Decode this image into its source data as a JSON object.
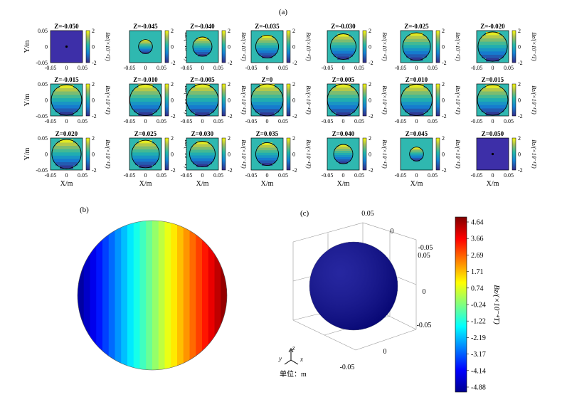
{
  "figure": {
    "panel_a_label": "(a)",
    "panel_b_label": "(b)",
    "panel_c_label": "(c)"
  },
  "panel_a": {
    "slice_titles": [
      "Z=-0.050",
      "Z=-0.045",
      "Z=-0.040",
      "Z=-0.035",
      "Z=-0.030",
      "Z=-0.025",
      "Z=-0.020",
      "Z=-0.015",
      "Z=-0.010",
      "Z=-0.005",
      "Z=0",
      "Z=0.005",
      "Z=0.010",
      "Z=0.015",
      "Z=0.020",
      "Z=0.025",
      "Z=0.030",
      "Z=0.035",
      "Z=0.040",
      "Z=0.045",
      "Z=0.050"
    ],
    "z_values": [
      -0.05,
      -0.045,
      -0.04,
      -0.035,
      -0.03,
      -0.025,
      -0.02,
      -0.015,
      -0.01,
      -0.005,
      0,
      0.005,
      0.01,
      0.015,
      0.02,
      0.025,
      0.03,
      0.035,
      0.04,
      0.045,
      0.05
    ],
    "sphere_radius": 0.05,
    "ylabel": "Y/m",
    "xlabel": "X/m",
    "x_ticks": [
      "-0.05",
      "0",
      "0.05"
    ],
    "y_ticks": [
      "0.05",
      "0",
      "-0.05"
    ],
    "colorbar_ticks": [
      "2",
      "0",
      "-2"
    ],
    "colorbar_label": "Bz/(×10⁻⁴T)"
  },
  "panel_c": {
    "axis_ticks_top": "0.05",
    "axis_ticks_back": [
      "0",
      "-0.05"
    ],
    "axis_ticks_right": [
      "0.05",
      "0",
      "-0.05"
    ],
    "axis_ticks_bottom": [
      "0",
      "-0.05"
    ],
    "triad": {
      "y": "y",
      "z": "z",
      "x": "x"
    },
    "unit_label": "单位：m"
  },
  "colorbar": {
    "ticks": [
      "4.64",
      "3.66",
      "2.69",
      "1.71",
      "0.74",
      "-0.24",
      "-1.22",
      "-2.19",
      "-3.17",
      "-4.14",
      "-4.88"
    ],
    "label": "Bz/(×10⁻⁴T)"
  },
  "chart_data": [
    {
      "type": "heatmap",
      "title": "",
      "xlabel": "X/m",
      "ylabel": "Y/m",
      "x_range": [
        -0.05,
        0.05
      ],
      "y_range": [
        -0.05,
        0.05
      ],
      "slices_z": [
        -0.05,
        -0.045,
        -0.04,
        -0.035,
        -0.03,
        -0.025,
        -0.02,
        -0.015,
        -0.01,
        -0.005,
        0,
        0.005,
        0.01,
        0.015,
        0.02,
        0.025,
        0.03,
        0.035,
        0.04,
        0.045,
        0.05
      ],
      "colorbar_range": [
        -2,
        2
      ]
    },
    {
      "type": "heatmap",
      "colorbar_range": [
        -4.88,
        4.64
      ],
      "colorbar_ticks": [
        4.64,
        3.66,
        2.69,
        1.71,
        0.74,
        -0.24,
        -1.22,
        -2.19,
        -3.17,
        -4.14,
        -4.88
      ]
    }
  ],
  "colors": {
    "background": "#ffffff",
    "slice_bg": "#2fb8b0",
    "empty_slice_bg": "#3d2fa8",
    "jet_low": "#00008f",
    "jet_high": "#800000"
  }
}
